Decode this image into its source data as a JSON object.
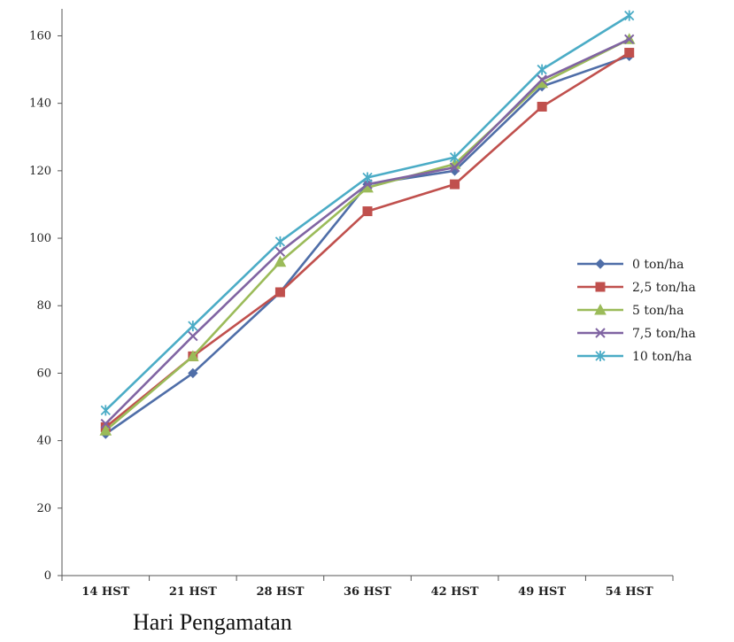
{
  "chart_data": {
    "type": "line",
    "title": "",
    "xlabel": "Hari Pengamatan",
    "ylabel": "",
    "categories": [
      "14 HST",
      "21 HST",
      "28 HST",
      "36 HST",
      "42 HST",
      "49 HST",
      "54 HST"
    ],
    "ylim": [
      0,
      160
    ],
    "yticks": [
      0,
      20,
      40,
      60,
      80,
      100,
      120,
      140,
      160
    ],
    "grid": false,
    "legend_position": "right",
    "series": [
      {
        "name": "0 ton/ha",
        "color": "#4f6ea8",
        "marker": "diamond",
        "values": [
          42,
          60,
          84,
          116,
          120,
          145,
          154
        ]
      },
      {
        "name": "2,5 ton/ha",
        "color": "#c0504d",
        "marker": "square",
        "values": [
          44,
          65,
          84,
          108,
          116,
          139,
          155
        ]
      },
      {
        "name": "5 ton/ha",
        "color": "#9bbb59",
        "marker": "triangle",
        "values": [
          43,
          65,
          93,
          115,
          122,
          146,
          159
        ]
      },
      {
        "name": "7,5 ton/ha",
        "color": "#8064a2",
        "marker": "x",
        "values": [
          45,
          71,
          96,
          116,
          121,
          147,
          159
        ]
      },
      {
        "name": "10 ton/ha",
        "color": "#4bacc6",
        "marker": "star",
        "values": [
          49,
          74,
          99,
          118,
          124,
          150,
          166
        ]
      }
    ]
  }
}
